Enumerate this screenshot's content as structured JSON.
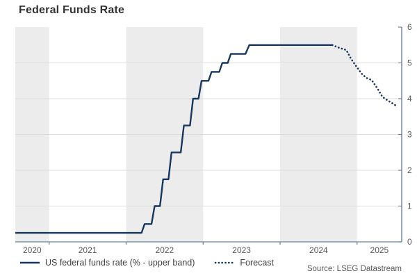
{
  "header": {
    "title": "Federal Funds Rate"
  },
  "footer": {
    "source": "Source: LSEG Datastream"
  },
  "theme": {
    "band_color": "#ececec",
    "grid_color": "#dcdcdc",
    "axis_color": "#64829e",
    "tick_label_color": "#595959",
    "line_color": "#17375e",
    "title_color": "#333333"
  },
  "chart_data": {
    "type": "line",
    "title": "Federal Funds Rate",
    "xlabel": "",
    "ylabel": "",
    "ylim": [
      0,
      6
    ],
    "xlim": [
      2020.56,
      2025.58
    ],
    "yticks": [
      0,
      1,
      2,
      3,
      4,
      5,
      6
    ],
    "gridlines": [
      1,
      2,
      3,
      4,
      5
    ],
    "grid": "horizontal-only",
    "xticks_years": [
      2021,
      2022,
      2023,
      2024,
      2025
    ],
    "year_labels": [
      "2020",
      "2021",
      "2022",
      "2023",
      "2024",
      "2025"
    ],
    "shaded_year_bands": [
      [
        2020.56,
        2021
      ],
      [
        2022,
        2023
      ],
      [
        2024,
        2025
      ]
    ],
    "legend_position": "bottom-left",
    "series": [
      {
        "name": "US federal funds rate (% - upper band)",
        "style": "solid",
        "color": "#17375e",
        "points": [
          [
            2020.56,
            0.25
          ],
          [
            2022.2,
            0.25
          ],
          [
            2022.24,
            0.5
          ],
          [
            2022.33,
            0.5
          ],
          [
            2022.37,
            1.0
          ],
          [
            2022.44,
            1.0
          ],
          [
            2022.48,
            1.75
          ],
          [
            2022.55,
            1.75
          ],
          [
            2022.59,
            2.5
          ],
          [
            2022.71,
            2.5
          ],
          [
            2022.75,
            3.25
          ],
          [
            2022.83,
            3.25
          ],
          [
            2022.87,
            4.0
          ],
          [
            2022.94,
            4.0
          ],
          [
            2022.98,
            4.5
          ],
          [
            2023.07,
            4.5
          ],
          [
            2023.11,
            4.75
          ],
          [
            2023.21,
            4.75
          ],
          [
            2023.25,
            5.0
          ],
          [
            2023.32,
            5.0
          ],
          [
            2023.36,
            5.25
          ],
          [
            2023.55,
            5.25
          ],
          [
            2023.6,
            5.5
          ],
          [
            2024.68,
            5.5
          ]
        ]
      },
      {
        "name": "Forecast",
        "style": "dotted",
        "color": "#17375e",
        "points": [
          [
            2024.68,
            5.5
          ],
          [
            2024.74,
            5.44
          ],
          [
            2024.8,
            5.4
          ],
          [
            2024.86,
            5.36
          ],
          [
            2024.92,
            5.12
          ],
          [
            2024.99,
            4.9
          ],
          [
            2025.06,
            4.7
          ],
          [
            2025.12,
            4.58
          ],
          [
            2025.19,
            4.52
          ],
          [
            2025.26,
            4.3
          ],
          [
            2025.33,
            4.05
          ],
          [
            2025.4,
            3.95
          ],
          [
            2025.46,
            3.87
          ],
          [
            2025.51,
            3.8
          ]
        ]
      }
    ]
  }
}
